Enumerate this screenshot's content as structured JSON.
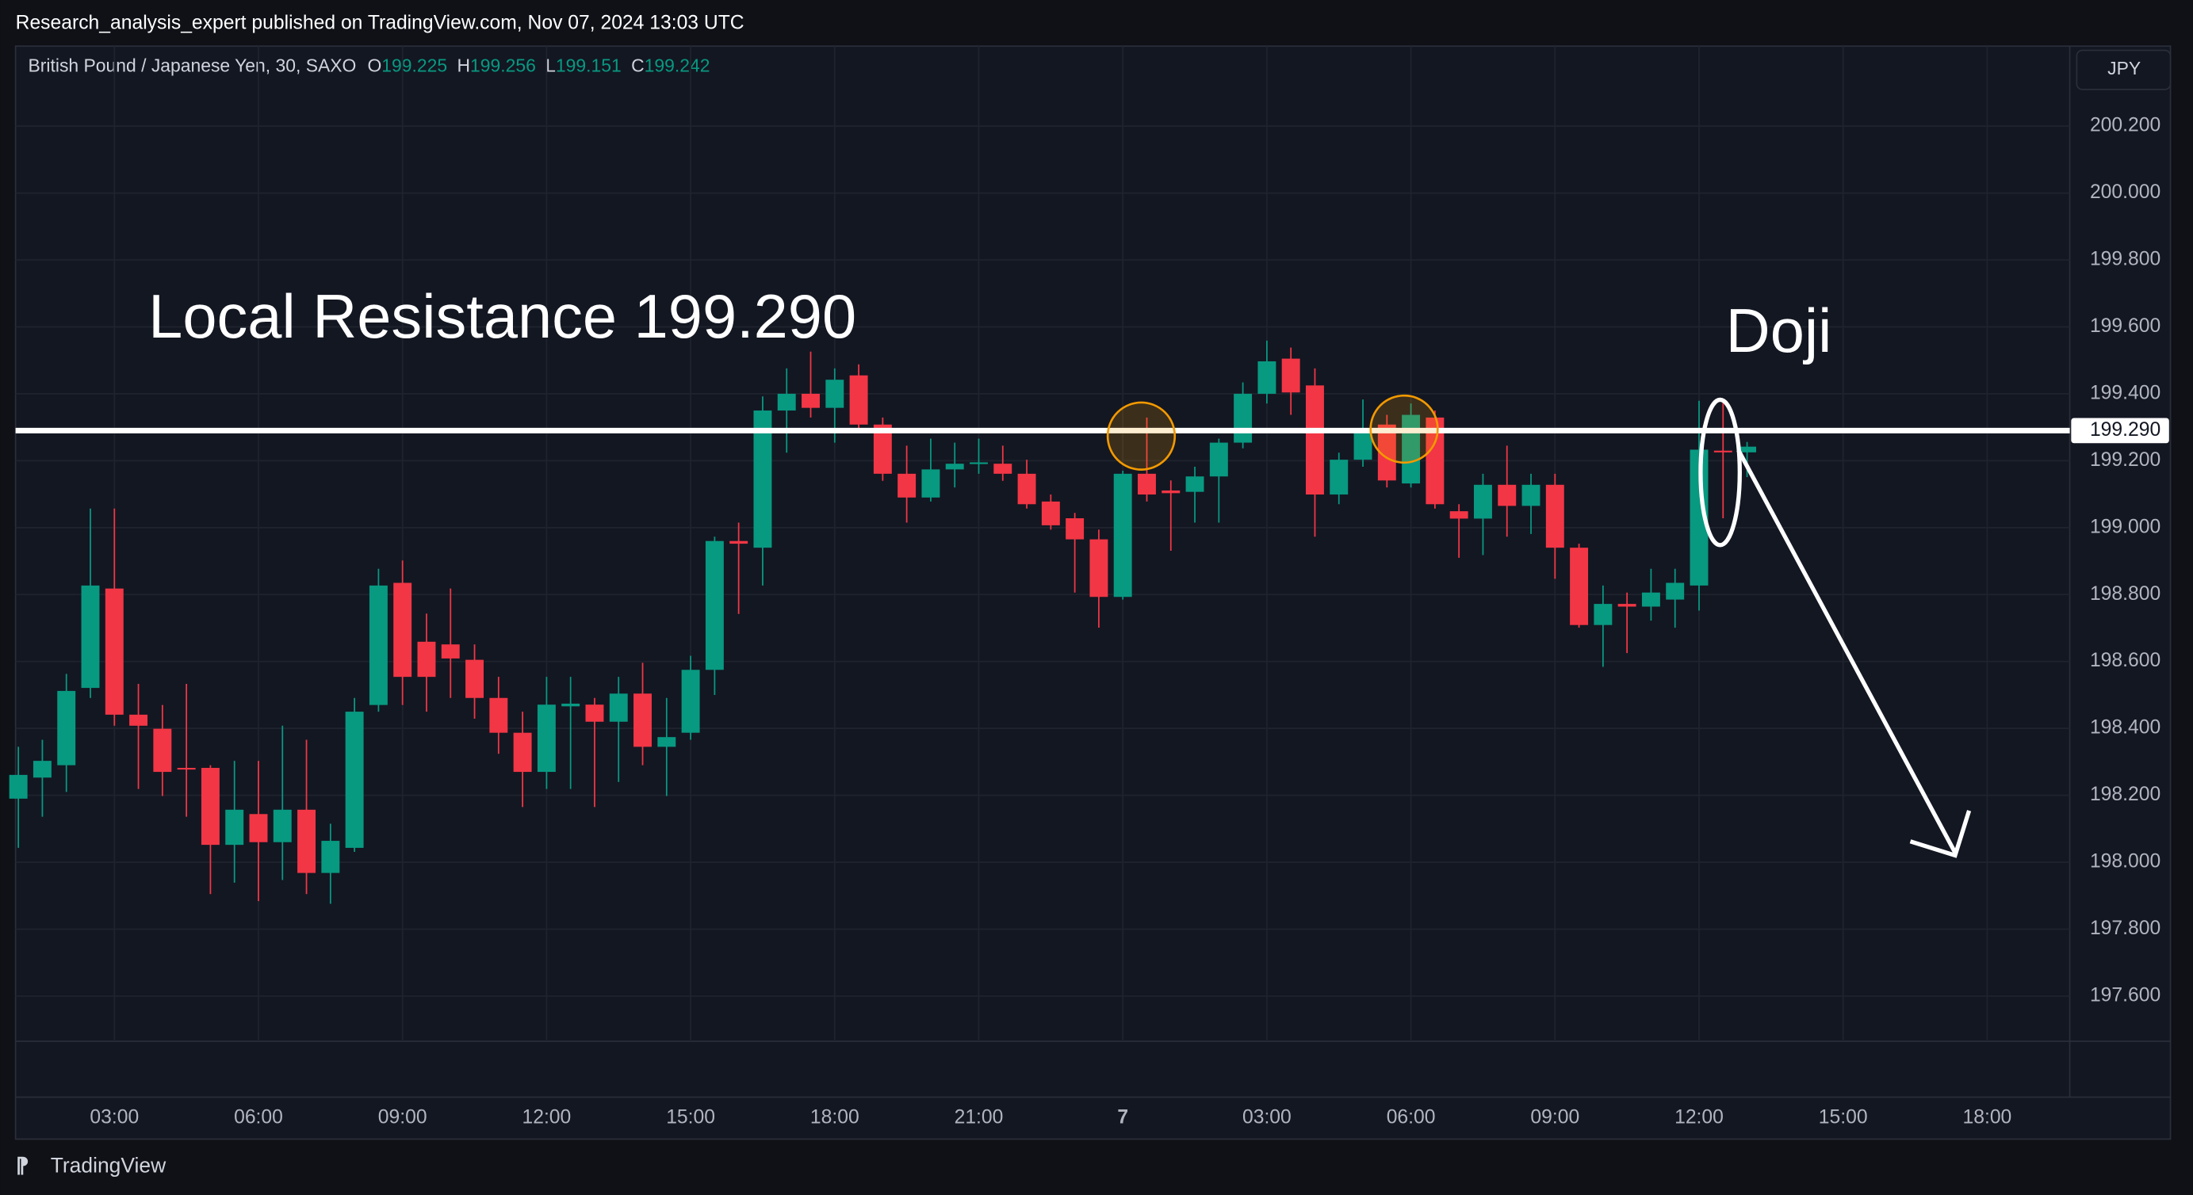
{
  "header": "Research_analysis_expert published on TradingView.com, Nov 07, 2024 13:03 UTC",
  "symbol": "British Pound / Japanese Yen, 30, SAXO",
  "ohlc_legend": [
    {
      "label": "O",
      "value": 199.225
    },
    {
      "label": "H",
      "value": 199.256
    },
    {
      "label": "L",
      "value": 199.151
    },
    {
      "label": "C",
      "value": 199.242
    }
  ],
  "currency": "JPY",
  "footer": "TradingView",
  "chart_data": {
    "type": "candlestick",
    "annotations": [
      "Local Resistance 199.290",
      "Doji"
    ],
    "resistance": {
      "value": 199.29,
      "label": "199.290"
    },
    "up_color": "#089981",
    "down_color": "#f23645",
    "categories": [
      null,
      null,
      null,
      null,
      "03:00",
      null,
      null,
      null,
      null,
      null,
      "06:00",
      null,
      null,
      null,
      null,
      null,
      "09:00",
      null,
      null,
      null,
      null,
      null,
      "12:00",
      null,
      null,
      null,
      null,
      null,
      "15:00",
      null,
      null,
      null,
      null,
      null,
      "18:00",
      null,
      null,
      null,
      null,
      null,
      "21:00",
      null,
      null,
      null,
      null,
      null,
      "7",
      null,
      null,
      null,
      null,
      null,
      "03:00",
      null,
      null,
      null,
      null,
      null,
      "06:00",
      null,
      null,
      null,
      null,
      null,
      "09:00",
      null,
      null,
      null,
      null,
      null,
      "12:00",
      null,
      null,
      null,
      null,
      null,
      "15:00",
      null,
      null,
      null,
      null,
      null,
      "18:00"
    ],
    "open": [
      198.19,
      198.253,
      198.29,
      198.521,
      198.818,
      198.441,
      198.399,
      198.282,
      198.282,
      198.052,
      198.144,
      198.06,
      198.157,
      197.968,
      198.043,
      198.47,
      198.835,
      198.659,
      198.651,
      198.605,
      198.491,
      198.387,
      198.27,
      198.466,
      198.471,
      198.42,
      198.504,
      198.345,
      198.387,
      198.575,
      198.96,
      198.94,
      199.35,
      199.4,
      199.358,
      199.455,
      199.308,
      199.161,
      199.09,
      199.174,
      199.191,
      199.191,
      199.161,
      199.078,
      199.028,
      198.965,
      198.793,
      199.161,
      199.111,
      199.107,
      199.153,
      199.254,
      199.4,
      199.505,
      199.425,
      199.099,
      199.203,
      199.308,
      199.132,
      199.329,
      199.049,
      199.027,
      199.128,
      199.065,
      199.128,
      198.94,
      198.709,
      198.772,
      198.764,
      198.785,
      198.827,
      199.23,
      199.225,
      null,
      null,
      null,
      null,
      null,
      null,
      null,
      null,
      null,
      null
    ],
    "high": [
      198.345,
      198.366,
      198.563,
      199.057,
      199.057,
      198.533,
      198.47,
      198.533,
      198.29,
      198.303,
      198.303,
      198.408,
      198.366,
      198.115,
      198.491,
      198.877,
      198.902,
      198.743,
      198.818,
      198.651,
      198.554,
      198.45,
      198.554,
      198.554,
      198.491,
      198.554,
      198.596,
      198.491,
      198.617,
      198.973,
      199.015,
      199.392,
      199.476,
      199.526,
      199.476,
      199.488,
      199.329,
      199.245,
      199.266,
      199.254,
      199.266,
      199.245,
      199.203,
      199.099,
      199.044,
      198.994,
      199.17,
      199.329,
      199.141,
      199.182,
      199.266,
      199.434,
      199.559,
      199.538,
      199.476,
      199.224,
      199.383,
      199.337,
      199.371,
      199.35,
      199.07,
      199.161,
      199.245,
      199.161,
      199.161,
      198.952,
      198.827,
      198.806,
      198.877,
      198.877,
      199.379,
      199.379,
      199.256,
      null,
      null,
      null,
      null,
      null,
      null,
      null,
      null,
      null,
      null
    ],
    "low": [
      198.043,
      198.136,
      198.21,
      198.491,
      198.408,
      198.219,
      198.198,
      198.136,
      197.905,
      197.939,
      197.884,
      197.947,
      197.905,
      197.876,
      198.031,
      198.45,
      198.47,
      198.45,
      198.491,
      198.429,
      198.324,
      198.165,
      198.219,
      198.219,
      198.165,
      198.24,
      198.29,
      198.198,
      198.366,
      198.5,
      198.742,
      198.827,
      199.224,
      199.329,
      199.254,
      199.295,
      199.14,
      199.015,
      199.078,
      199.12,
      199.161,
      199.14,
      199.057,
      198.994,
      198.806,
      198.701,
      198.785,
      199.078,
      198.931,
      199.015,
      199.015,
      199.237,
      199.371,
      199.337,
      198.973,
      199.07,
      199.182,
      199.12,
      199.12,
      199.057,
      198.91,
      198.918,
      198.973,
      198.981,
      198.847,
      198.701,
      198.584,
      198.625,
      198.722,
      198.701,
      198.752,
      199.028,
      199.151,
      null,
      null,
      null,
      null,
      null,
      null,
      null,
      null,
      null,
      null
    ],
    "close": [
      198.261,
      198.303,
      198.512,
      198.827,
      198.441,
      198.408,
      198.27,
      198.278,
      198.052,
      198.157,
      198.06,
      198.157,
      197.968,
      198.064,
      198.45,
      198.827,
      198.554,
      198.554,
      198.609,
      198.491,
      198.387,
      198.27,
      198.471,
      198.474,
      198.42,
      198.504,
      198.345,
      198.374,
      198.575,
      198.96,
      198.952,
      199.35,
      199.4,
      199.358,
      199.442,
      199.308,
      199.161,
      199.09,
      199.174,
      199.191,
      199.195,
      199.161,
      199.07,
      199.007,
      198.965,
      198.793,
      199.161,
      199.099,
      199.103,
      199.153,
      199.254,
      199.4,
      199.497,
      199.404,
      199.099,
      199.203,
      199.287,
      199.141,
      199.337,
      199.07,
      199.027,
      199.128,
      199.065,
      199.128,
      198.94,
      198.709,
      198.772,
      198.764,
      198.806,
      198.835,
      199.233,
      199.225,
      199.242,
      null,
      null,
      null,
      null,
      null,
      null,
      null,
      null,
      null,
      null
    ],
    "ylim": [
      197.465,
      200.439
    ],
    "yticks": [
      {
        "value": 197.6,
        "label": "197.600"
      },
      {
        "value": 197.8,
        "label": "197.800"
      },
      {
        "value": 198,
        "label": "198.000"
      },
      {
        "value": 198.2,
        "label": "198.200"
      },
      {
        "value": 198.4,
        "label": "198.400"
      },
      {
        "value": 198.6,
        "label": "198.600"
      },
      {
        "value": 198.8,
        "label": "198.800"
      },
      {
        "value": 199,
        "label": "199.000"
      },
      {
        "value": 199.2,
        "label": "199.200"
      },
      {
        "value": 199.4,
        "label": "199.400"
      },
      {
        "value": 199.6,
        "label": "199.600"
      },
      {
        "value": 199.8,
        "label": "199.800"
      },
      {
        "value": 200,
        "label": "200.000"
      },
      {
        "value": 200.2,
        "label": "200.200"
      }
    ],
    "grid": true
  }
}
